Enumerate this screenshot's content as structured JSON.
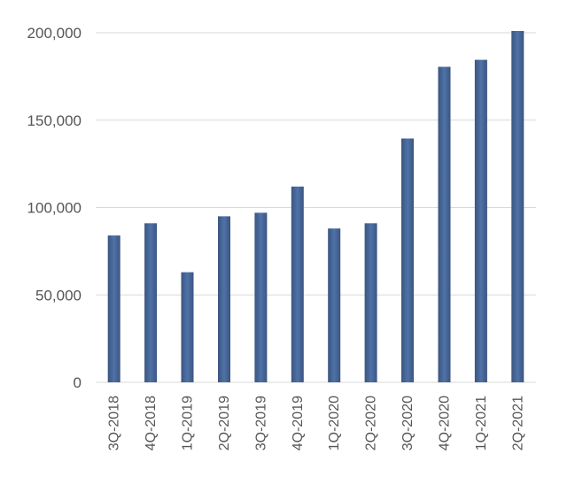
{
  "chart_data": {
    "type": "bar",
    "title": "",
    "xlabel": "",
    "ylabel": "",
    "categories": [
      "3Q-2018",
      "4Q-2018",
      "1Q-2019",
      "2Q-2019",
      "3Q-2019",
      "4Q-2019",
      "1Q-2020",
      "2Q-2020",
      "3Q-2020",
      "4Q-2020",
      "1Q-2021",
      "2Q-2021"
    ],
    "values": [
      84000,
      91000,
      63000,
      95000,
      97000,
      112000,
      88000,
      91000,
      139500,
      180500,
      184500,
      201000
    ],
    "ylim": [
      0,
      200000
    ],
    "yticks": [
      0,
      50000,
      100000,
      150000,
      200000
    ],
    "ytick_labels": [
      "0",
      "50,000",
      "100,000",
      "150,000",
      "200,000"
    ],
    "grid": true,
    "legend": "none",
    "colors": {
      "bar_edge": "#3b5580",
      "bar_center": "#4f72a8",
      "grid": "#d9d9d9",
      "text": "#555555"
    }
  }
}
